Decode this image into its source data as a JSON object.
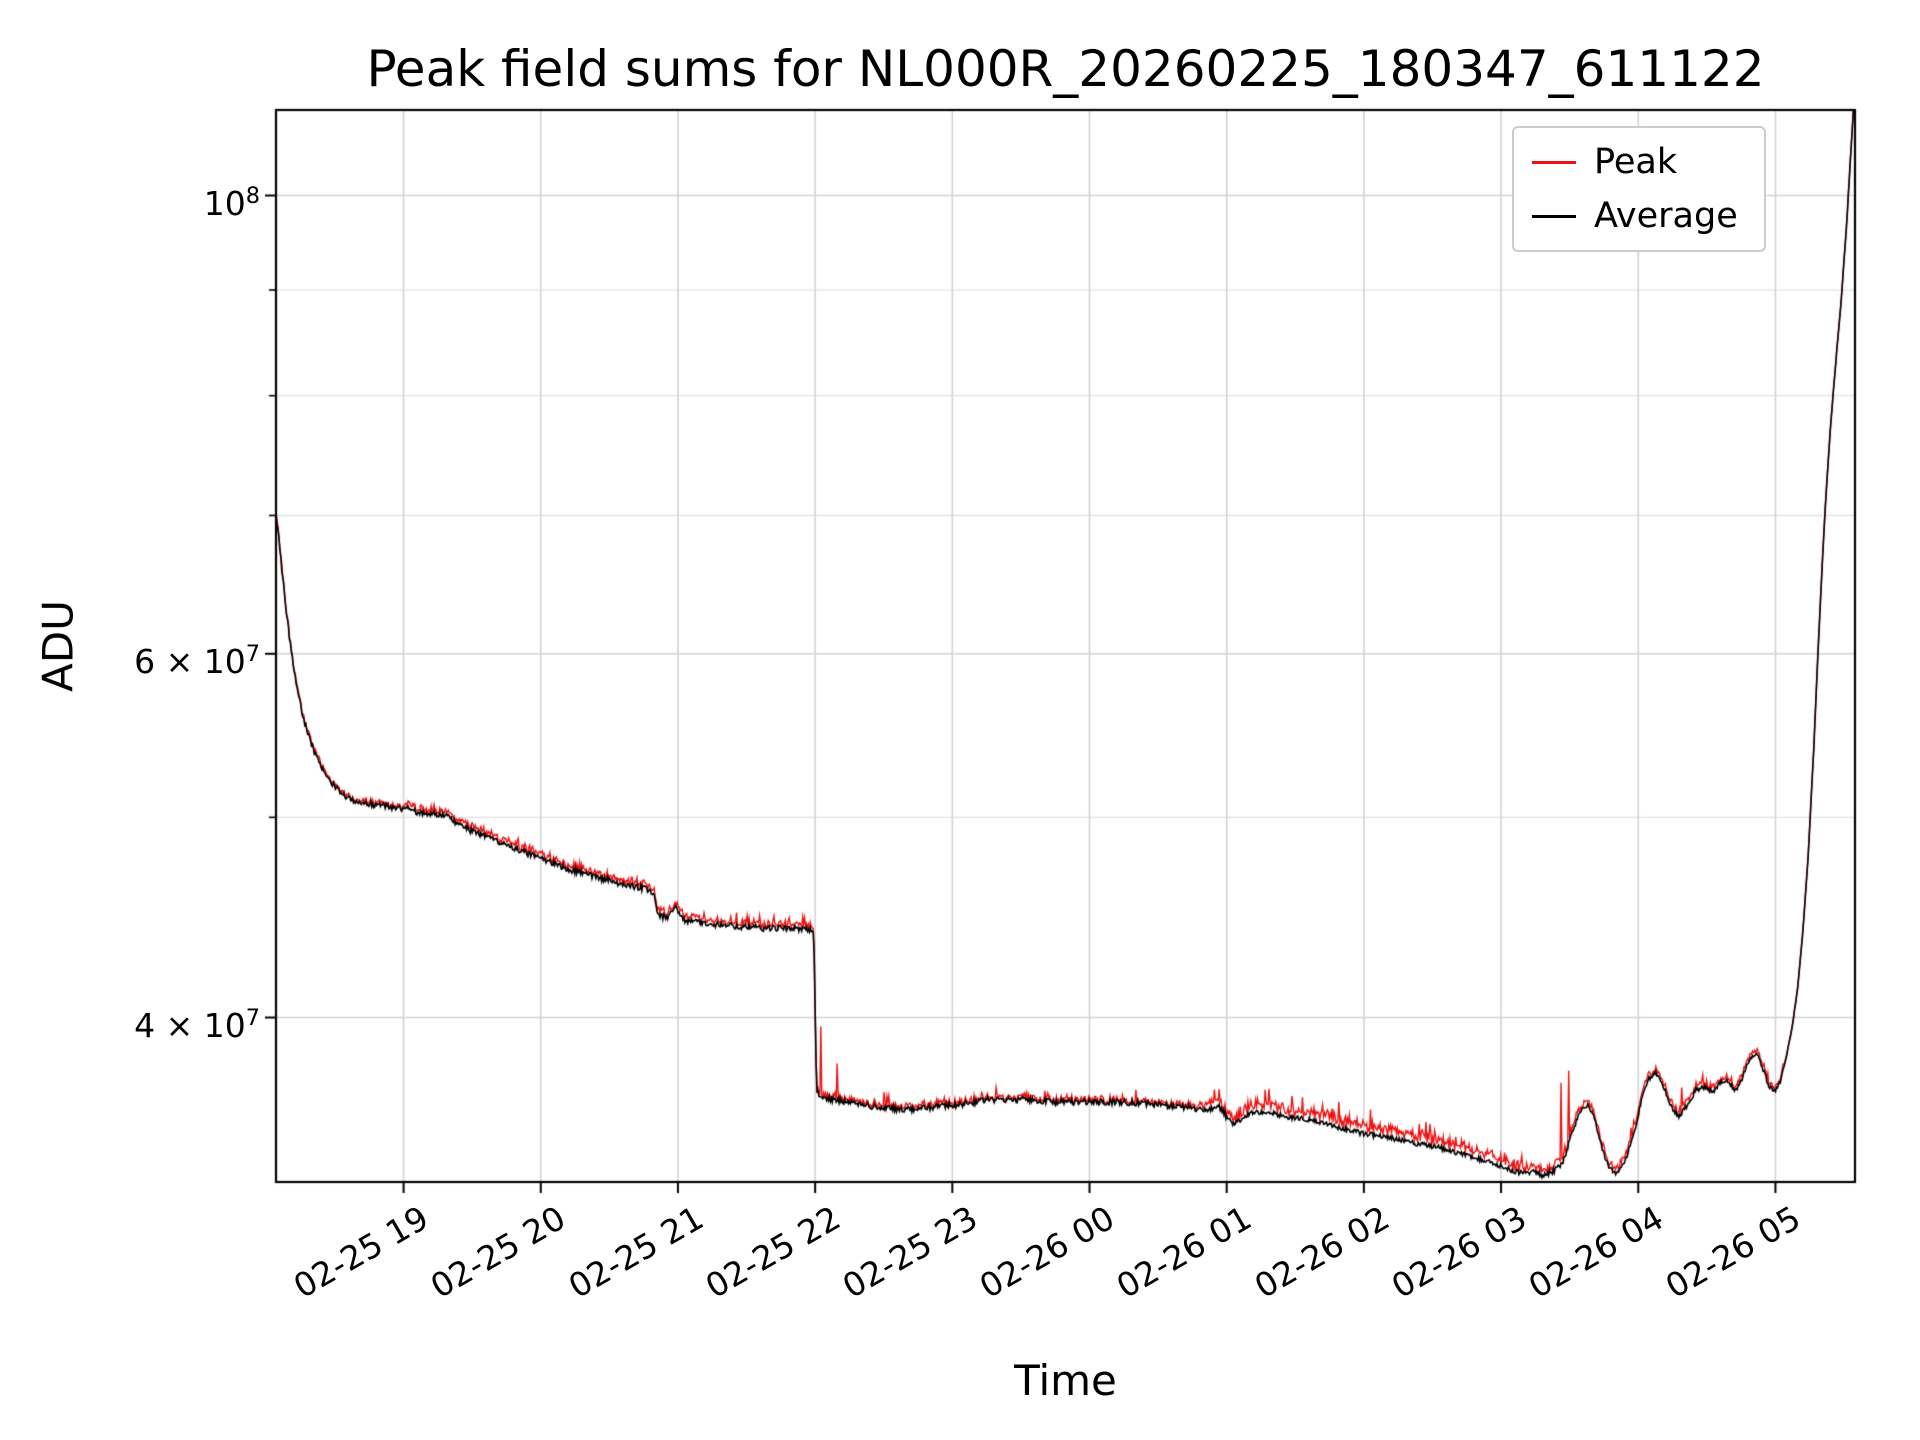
{
  "chart_data": {
    "type": "line",
    "title": "Peak field sums for NL000R_20260225_180347_611122",
    "xlabel": "Time",
    "ylabel": "ADU",
    "y_scale": "log",
    "grid": true,
    "legend_position": "upper right",
    "grid_color": "#d3d3d3",
    "grid_minor_color": "#e3e3e3",
    "x_range_hours": [
      18.07,
      29.58
    ],
    "y_range": [
      33300000,
      110000000
    ],
    "x_ticks": [
      {
        "t": 19,
        "label": "02-25 19"
      },
      {
        "t": 20,
        "label": "02-25 20"
      },
      {
        "t": 21,
        "label": "02-25 21"
      },
      {
        "t": 22,
        "label": "02-25 22"
      },
      {
        "t": 23,
        "label": "02-25 23"
      },
      {
        "t": 24,
        "label": "02-26 00"
      },
      {
        "t": 25,
        "label": "02-26 01"
      },
      {
        "t": 26,
        "label": "02-26 02"
      },
      {
        "t": 27,
        "label": "02-26 03"
      },
      {
        "t": 28,
        "label": "02-26 04"
      },
      {
        "t": 29,
        "label": "02-26 05"
      }
    ],
    "y_major_ticks": [
      {
        "value": 40000000,
        "base": "4 × 10",
        "exp": "7"
      },
      {
        "value": 60000000,
        "base": "6 × 10",
        "exp": "7"
      },
      {
        "value": 100000000,
        "base": "10",
        "exp": "8"
      }
    ],
    "y_minor_ticks": [
      50000000,
      70000000,
      80000000,
      90000000
    ],
    "value_scale": 10000000,
    "series": [
      {
        "name": "Peak",
        "color": "#ee1111",
        "style": "solid",
        "derived_from": "Average",
        "excess_bands": [
          [
            18.07,
            19.0,
            0.004
          ],
          [
            19.0,
            21.99,
            0.007
          ],
          [
            21.99,
            23.0,
            0.005
          ],
          [
            23.0,
            24.8,
            0.004
          ],
          [
            24.8,
            25.1,
            0.009
          ],
          [
            25.1,
            27.05,
            0.013
          ],
          [
            27.05,
            27.42,
            0.009
          ],
          [
            27.42,
            28.05,
            0.008
          ],
          [
            28.05,
            29.06,
            0.007
          ],
          [
            29.06,
            29.58,
            0.0015
          ]
        ],
        "spikes": [
          [
            22.04,
            3.96
          ],
          [
            22.16,
            3.8
          ],
          [
            22.5,
            3.68
          ],
          [
            23.32,
            3.7
          ],
          [
            24.34,
            3.69
          ],
          [
            25.28,
            3.69
          ],
          [
            25.55,
            3.66
          ],
          [
            26.05,
            3.61
          ],
          [
            26.45,
            3.56
          ],
          [
            27.44,
            3.72
          ],
          [
            27.49,
            3.77
          ],
          [
            28.32,
            3.7
          ]
        ]
      },
      {
        "name": "Average",
        "color": "#000000",
        "style": "solid",
        "jitter_bands": [
          [
            18.07,
            22.0,
            0.0035
          ],
          [
            22.0,
            25.0,
            0.0035
          ],
          [
            25.0,
            29.06,
            0.0028
          ],
          [
            29.06,
            29.58,
            0.0008
          ]
        ],
        "points": [
          [
            18.07,
            7.0
          ],
          [
            18.09,
            6.82
          ],
          [
            18.12,
            6.52
          ],
          [
            18.15,
            6.25
          ],
          [
            18.18,
            6.02
          ],
          [
            18.22,
            5.8
          ],
          [
            18.27,
            5.58
          ],
          [
            18.32,
            5.44
          ],
          [
            18.38,
            5.32
          ],
          [
            18.45,
            5.22
          ],
          [
            18.55,
            5.13
          ],
          [
            18.65,
            5.09
          ],
          [
            18.78,
            5.07
          ],
          [
            18.9,
            5.06
          ],
          [
            19.0,
            5.05
          ],
          [
            19.1,
            5.03
          ],
          [
            19.2,
            5.02
          ],
          [
            19.28,
            5.02
          ],
          [
            19.35,
            4.99
          ],
          [
            19.45,
            4.94
          ],
          [
            19.6,
            4.89
          ],
          [
            19.8,
            4.83
          ],
          [
            20.0,
            4.78
          ],
          [
            20.2,
            4.72
          ],
          [
            20.4,
            4.68
          ],
          [
            20.6,
            4.64
          ],
          [
            20.75,
            4.62
          ],
          [
            20.82,
            4.6
          ],
          [
            20.86,
            4.48
          ],
          [
            20.92,
            4.47
          ],
          [
            20.98,
            4.53
          ],
          [
            21.02,
            4.47
          ],
          [
            21.08,
            4.45
          ],
          [
            21.2,
            4.44
          ],
          [
            21.4,
            4.43
          ],
          [
            21.6,
            4.42
          ],
          [
            21.8,
            4.42
          ],
          [
            21.95,
            4.41
          ],
          [
            21.99,
            4.4
          ],
          [
            22.01,
            3.68
          ],
          [
            22.06,
            3.66
          ],
          [
            22.12,
            3.65
          ],
          [
            22.25,
            3.64
          ],
          [
            22.45,
            3.62
          ],
          [
            22.65,
            3.61
          ],
          [
            22.85,
            3.62
          ],
          [
            23.05,
            3.63
          ],
          [
            23.25,
            3.65
          ],
          [
            23.5,
            3.65
          ],
          [
            23.75,
            3.64
          ],
          [
            24.0,
            3.64
          ],
          [
            24.25,
            3.64
          ],
          [
            24.5,
            3.63
          ],
          [
            24.7,
            3.62
          ],
          [
            24.85,
            3.61
          ],
          [
            24.95,
            3.62
          ],
          [
            25.0,
            3.58
          ],
          [
            25.05,
            3.55
          ],
          [
            25.1,
            3.57
          ],
          [
            25.18,
            3.6
          ],
          [
            25.3,
            3.6
          ],
          [
            25.45,
            3.58
          ],
          [
            25.6,
            3.57
          ],
          [
            25.75,
            3.55
          ],
          [
            25.95,
            3.52
          ],
          [
            26.15,
            3.5
          ],
          [
            26.35,
            3.48
          ],
          [
            26.55,
            3.46
          ],
          [
            26.75,
            3.43
          ],
          [
            26.9,
            3.41
          ],
          [
            27.0,
            3.39
          ],
          [
            27.1,
            3.37
          ],
          [
            27.18,
            3.36
          ],
          [
            27.25,
            3.37
          ],
          [
            27.3,
            3.35
          ],
          [
            27.38,
            3.37
          ],
          [
            27.45,
            3.4
          ],
          [
            27.52,
            3.52
          ],
          [
            27.58,
            3.61
          ],
          [
            27.63,
            3.63
          ],
          [
            27.68,
            3.58
          ],
          [
            27.73,
            3.47
          ],
          [
            27.78,
            3.39
          ],
          [
            27.84,
            3.36
          ],
          [
            27.9,
            3.4
          ],
          [
            27.97,
            3.52
          ],
          [
            28.03,
            3.66
          ],
          [
            28.08,
            3.74
          ],
          [
            28.13,
            3.76
          ],
          [
            28.18,
            3.71
          ],
          [
            28.24,
            3.62
          ],
          [
            28.3,
            3.58
          ],
          [
            28.36,
            3.63
          ],
          [
            28.42,
            3.69
          ],
          [
            28.48,
            3.7
          ],
          [
            28.54,
            3.68
          ],
          [
            28.6,
            3.72
          ],
          [
            28.66,
            3.73
          ],
          [
            28.7,
            3.68
          ],
          [
            28.76,
            3.74
          ],
          [
            28.82,
            3.83
          ],
          [
            28.87,
            3.84
          ],
          [
            28.91,
            3.77
          ],
          [
            28.96,
            3.7
          ],
          [
            29.0,
            3.69
          ],
          [
            29.04,
            3.73
          ],
          [
            29.08,
            3.83
          ],
          [
            29.12,
            3.95
          ],
          [
            29.16,
            4.12
          ],
          [
            29.2,
            4.4
          ],
          [
            29.24,
            4.8
          ],
          [
            29.28,
            5.4
          ],
          [
            29.32,
            6.2
          ],
          [
            29.36,
            7.0
          ],
          [
            29.4,
            7.7
          ],
          [
            29.44,
            8.3
          ],
          [
            29.48,
            8.9
          ],
          [
            29.52,
            9.7
          ],
          [
            29.55,
            10.5
          ],
          [
            29.58,
            11.3
          ]
        ]
      }
    ]
  }
}
